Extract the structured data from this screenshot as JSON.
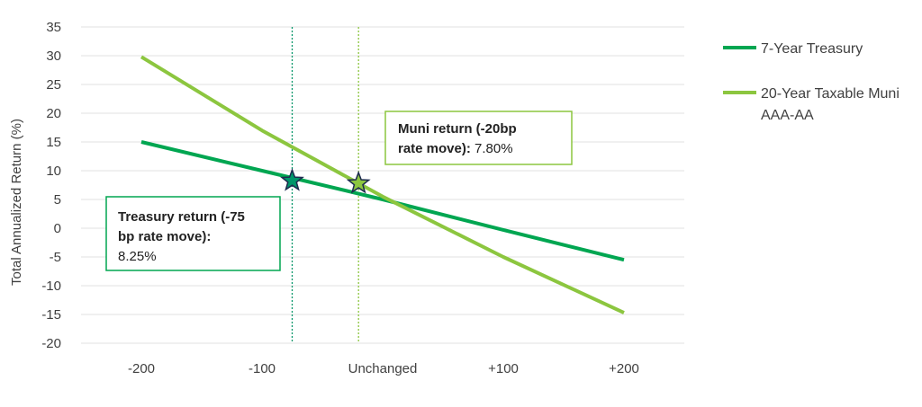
{
  "chart_data": {
    "type": "line",
    "categories": [
      "-200",
      "-100",
      "Unchanged",
      "+100",
      "+200"
    ],
    "x_values": [
      -200,
      -100,
      0,
      100,
      200
    ],
    "xlim": [
      -250,
      250
    ],
    "ylabel": "Total Annualized Return (%)",
    "ylim": [
      -20,
      35
    ],
    "yticks": [
      35,
      30,
      25,
      20,
      15,
      10,
      5,
      0,
      -5,
      -10,
      -15,
      -20
    ],
    "grid": true,
    "series": [
      {
        "name": "7-Year Treasury",
        "color": "#00a651",
        "x": [
          -200,
          -100,
          0,
          100,
          200
        ],
        "values": [
          15.0,
          10.0,
          5.0,
          -0.3,
          -5.5
        ]
      },
      {
        "name": "20-Year Taxable Muni AAA-AA",
        "color": "#8cc63f",
        "x": [
          -200,
          -100,
          0,
          100,
          200
        ],
        "values": [
          29.8,
          17.0,
          5.5,
          -5.0,
          -14.7
        ]
      }
    ],
    "markers": [
      {
        "x": -75,
        "y": 8.25,
        "color": "#00966a",
        "series": "7-Year Treasury"
      },
      {
        "x": -20,
        "y": 7.8,
        "color": "#8cc63f",
        "series": "20-Year Taxable Muni AAA-AA"
      }
    ],
    "reference_lines": [
      {
        "x": -75,
        "color": "#00966a"
      },
      {
        "x": -20,
        "color": "#8cc63f"
      }
    ],
    "annotations": {
      "treasury": {
        "line1": "Treasury return (-75",
        "line2": "bp rate move):",
        "line3": "8.25%",
        "border": "#00a651"
      },
      "muni": {
        "line1": "Muni return (-20bp",
        "line2_bold": "rate move):",
        "line2_value": " 7.80%",
        "border": "#8cc63f"
      }
    },
    "legend": {
      "placement": "right",
      "line1": "7-Year Treasury",
      "line2a": "20-Year Taxable Muni",
      "line2b": "AAA-AA"
    }
  }
}
